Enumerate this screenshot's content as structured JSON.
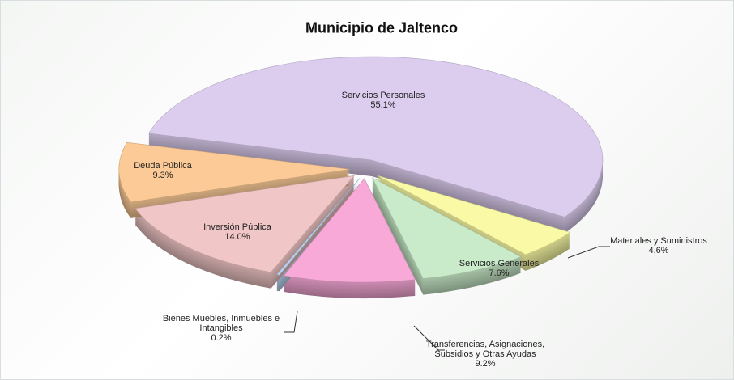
{
  "chart_data": {
    "type": "pie",
    "title": "Municipio de Jaltenco",
    "categories": [
      "Servicios Personales",
      "Materiales y Suministros",
      "Servicios Generales",
      "Transferencias, Asignaciones, Subsidios y Otras Ayudas",
      "Bienes Muebles, Inmuebles e Intangibles",
      "Inversión Pública",
      "Deuda Pública"
    ],
    "values": [
      55.1,
      4.6,
      7.6,
      9.2,
      0.2,
      14.0,
      9.3
    ],
    "value_labels": [
      "55.1%",
      "4.6%",
      "7.6%",
      "9.2%",
      "0.2%",
      "14.0%",
      "9.3%"
    ],
    "colors": [
      "#dccdef",
      "#fafaa6",
      "#c9ebc9",
      "#f8a9d8",
      "#b9d2ef",
      "#f1c6c6",
      "#fbca96"
    ]
  }
}
